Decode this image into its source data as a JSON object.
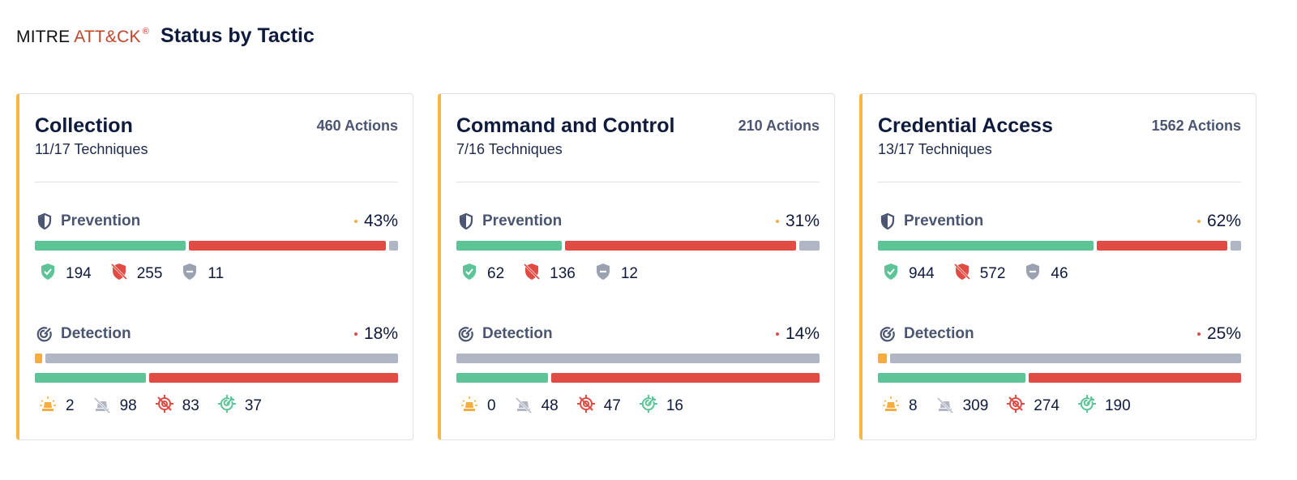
{
  "header": {
    "logo_mitre": "MITRE",
    "logo_attck": "ATT&CK",
    "logo_reg": "®",
    "title": "Status by Tactic"
  },
  "colors": {
    "green": "#5cc496",
    "red": "#e04b44",
    "gray": "#b0b6c3",
    "orange": "#f5ae3c",
    "accent": "#f5b942"
  },
  "labels": {
    "prevention": "Prevention",
    "detection": "Detection"
  },
  "cards": [
    {
      "name": "Collection",
      "actions": "460 Actions",
      "techniques": "11/17 Techniques",
      "prevention": {
        "percent": "43%",
        "dot": "#f5ae3c",
        "prevented": "194",
        "not_prevented": "255",
        "other": "11"
      },
      "detection": {
        "percent": "18%",
        "dot": "#e04b44",
        "alerted": "2",
        "not_alerted": "98",
        "not_detected": "83",
        "detected": "37"
      }
    },
    {
      "name": "Command and Control",
      "actions": "210 Actions",
      "techniques": "7/16 Techniques",
      "prevention": {
        "percent": "31%",
        "dot": "#f5ae3c",
        "prevented": "62",
        "not_prevented": "136",
        "other": "12"
      },
      "detection": {
        "percent": "14%",
        "dot": "#e04b44",
        "alerted": "0",
        "not_alerted": "48",
        "not_detected": "47",
        "detected": "16"
      }
    },
    {
      "name": "Credential Access",
      "actions": "1562 Actions",
      "techniques": "13/17 Techniques",
      "prevention": {
        "percent": "62%",
        "dot": "#f5ae3c",
        "prevented": "944",
        "not_prevented": "572",
        "other": "46"
      },
      "detection": {
        "percent": "25%",
        "dot": "#e04b44",
        "alerted": "8",
        "not_alerted": "309",
        "not_detected": "274",
        "detected": "190"
      }
    }
  ]
}
